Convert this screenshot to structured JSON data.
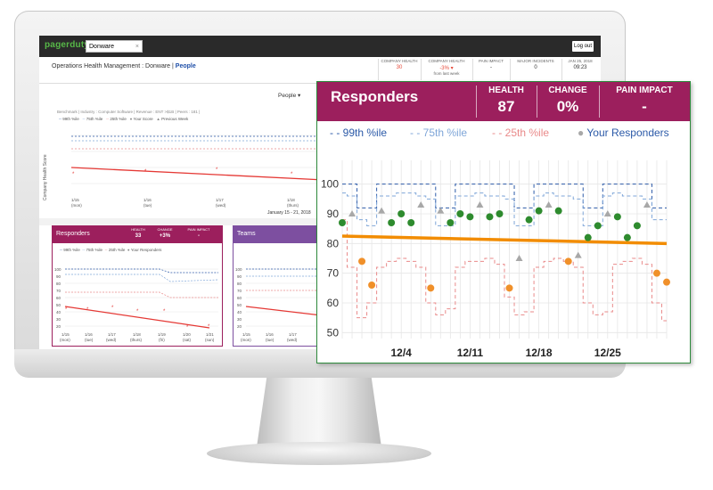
{
  "app": {
    "logo": "pagerduty",
    "org_value": "Donware",
    "logout": "Log out"
  },
  "page": {
    "title_prefix": "Operations Health Management : Donware |",
    "title_active": "People"
  },
  "stats": [
    {
      "label": "COMPANY HEALTH",
      "value": "30",
      "color": "#e74c3c"
    },
    {
      "label": "COMPANY HEALTH",
      "value": "-3% ▾",
      "sub": "from last week",
      "color": "#e74c3c"
    },
    {
      "label": "PAIN IMPACT",
      "value": "-"
    },
    {
      "label": "MAJOR INCIDENTS",
      "value": "0"
    },
    {
      "label": "JAN 25, 2018",
      "value": "09:23"
    }
  ],
  "main": {
    "dropdown": "People ▾",
    "benchmark": "Benchmark | Industry : Computer Software | Revenue : ENT >$1B | Peers : 181 |",
    "legend": [
      "99th %ile",
      "75th %ile",
      "25th %ile",
      "Your Score",
      "Previous Week"
    ],
    "ylabel": "Company Health Score",
    "xticks": [
      "1/15\n(mon)",
      "1/16\n(tue)",
      "1/17\n(wed)",
      "1/18\n(thurs)"
    ],
    "date_range": "January 15 - 21, 2018"
  },
  "card_responders": {
    "title": "Responders",
    "health_label": "HEALTH",
    "health": "33",
    "change_label": "CHANGE",
    "change": "+3%",
    "pain_label": "PAIN IMPACT",
    "pain": "-",
    "legend": [
      "99th %ile",
      "75th %ile",
      "25th %ile",
      "Your Responders"
    ],
    "yticks": [
      "100",
      "90",
      "80",
      "70",
      "60",
      "50",
      "40",
      "30",
      "20"
    ],
    "xticks": [
      "1/15\n(mon)",
      "1/16\n(tue)",
      "1/17\n(wed)",
      "1/18\n(thurs)",
      "1/19\n(fri)",
      "1/20\n(sat)",
      "1/21\n(sun)"
    ]
  },
  "card_teams": {
    "title": "Teams",
    "health_label": "HE",
    "yticks": [
      "100",
      "90",
      "80",
      "70",
      "60",
      "50",
      "40",
      "30",
      "20"
    ],
    "xticks": [
      "1/15\n(mon)",
      "1/16\n(tue)",
      "1/17\n(wed)"
    ]
  },
  "popup": {
    "title": "Responders",
    "health_label": "HEALTH",
    "health": "87",
    "change_label": "CHANGE",
    "change": "0%",
    "pain_label": "PAIN IMPACT",
    "pain": "-",
    "legend": [
      "99th %ile",
      "75th %ile",
      "25th %ile",
      "Your Responders"
    ]
  },
  "colors": {
    "brand": "#9c1f5d",
    "teams": "#7d4fa0",
    "p99": "#2c5aa8",
    "p75": "#7fa6d8",
    "p25": "#e98a8a",
    "trend": "#f28c00",
    "green": "#2e8b2e",
    "orange": "#f0902a",
    "gray": "#a8a8a8"
  },
  "chart_data": {
    "type": "scatter",
    "title": "Responders",
    "x": [
      "11/28",
      "11/29",
      "11/30",
      "12/1",
      "12/2",
      "12/3",
      "12/4",
      "12/5",
      "12/6",
      "12/7",
      "12/8",
      "12/9",
      "12/10",
      "12/11",
      "12/12",
      "12/13",
      "12/14",
      "12/15",
      "12/16",
      "12/17",
      "12/18",
      "12/19",
      "12/20",
      "12/21",
      "12/22",
      "12/23",
      "12/24",
      "12/25",
      "12/26",
      "12/27",
      "12/28",
      "12/29",
      "12/30",
      "12/31"
    ],
    "xticks": [
      "12/4",
      "12/11",
      "12/18",
      "12/25"
    ],
    "yticks": [
      50,
      60,
      70,
      80,
      90,
      100
    ],
    "ylim": [
      48,
      108
    ],
    "series": [
      {
        "name": "99th %ile",
        "style": "dashed",
        "color": "#2c5aa8",
        "values": [
          100,
          100,
          92,
          92,
          100,
          100,
          100,
          100,
          100,
          100,
          92,
          92,
          100,
          100,
          100,
          100,
          100,
          100,
          92,
          92,
          100,
          100,
          100,
          100,
          100,
          92,
          92,
          100,
          100,
          100,
          100,
          100,
          92,
          92
        ]
      },
      {
        "name": "75th %ile",
        "style": "dashed",
        "color": "#7fa6d8",
        "values": [
          97,
          96,
          88,
          86,
          96,
          96,
          97,
          97,
          96,
          95,
          86,
          86,
          96,
          96,
          97,
          96,
          96,
          95,
          86,
          86,
          96,
          97,
          96,
          96,
          95,
          86,
          86,
          96,
          97,
          96,
          96,
          95,
          88,
          88
        ]
      },
      {
        "name": "25th %ile",
        "style": "dashed",
        "color": "#e98a8a",
        "values": [
          88,
          72,
          55,
          60,
          72,
          74,
          75,
          74,
          72,
          60,
          56,
          58,
          72,
          74,
          74,
          75,
          73,
          62,
          56,
          57,
          72,
          74,
          75,
          74,
          72,
          60,
          56,
          57,
          73,
          74,
          75,
          73,
          60,
          54
        ]
      },
      {
        "name": "Your Responders",
        "color": "#a8a8a8",
        "points": [
          {
            "x": "11/28",
            "y": 87,
            "c": "green"
          },
          {
            "x": "11/29",
            "y": 90,
            "c": "gray"
          },
          {
            "x": "11/30",
            "y": 74,
            "c": "orange"
          },
          {
            "x": "12/1",
            "y": 66,
            "c": "orange"
          },
          {
            "x": "12/2",
            "y": 91,
            "c": "gray"
          },
          {
            "x": "12/3",
            "y": 87,
            "c": "green"
          },
          {
            "x": "12/4",
            "y": 90,
            "c": "green"
          },
          {
            "x": "12/5",
            "y": 87,
            "c": "green"
          },
          {
            "x": "12/6",
            "y": 93,
            "c": "gray"
          },
          {
            "x": "12/7",
            "y": 65,
            "c": "orange"
          },
          {
            "x": "12/8",
            "y": 91,
            "c": "gray"
          },
          {
            "x": "12/9",
            "y": 87,
            "c": "green"
          },
          {
            "x": "12/10",
            "y": 90,
            "c": "green"
          },
          {
            "x": "12/11",
            "y": 89,
            "c": "green"
          },
          {
            "x": "12/12",
            "y": 93,
            "c": "gray"
          },
          {
            "x": "12/13",
            "y": 89,
            "c": "green"
          },
          {
            "x": "12/14",
            "y": 90,
            "c": "green"
          },
          {
            "x": "12/15",
            "y": 65,
            "c": "orange"
          },
          {
            "x": "12/16",
            "y": 75,
            "c": "gray"
          },
          {
            "x": "12/17",
            "y": 88,
            "c": "green"
          },
          {
            "x": "12/18",
            "y": 91,
            "c": "green"
          },
          {
            "x": "12/19",
            "y": 93,
            "c": "gray"
          },
          {
            "x": "12/20",
            "y": 91,
            "c": "green"
          },
          {
            "x": "12/21",
            "y": 74,
            "c": "orange"
          },
          {
            "x": "12/22",
            "y": 76,
            "c": "gray"
          },
          {
            "x": "12/23",
            "y": 82,
            "c": "green"
          },
          {
            "x": "12/24",
            "y": 86,
            "c": "green"
          },
          {
            "x": "12/25",
            "y": 90,
            "c": "gray"
          },
          {
            "x": "12/26",
            "y": 89,
            "c": "green"
          },
          {
            "x": "12/27",
            "y": 82,
            "c": "green"
          },
          {
            "x": "12/28",
            "y": 86,
            "c": "green"
          },
          {
            "x": "12/29",
            "y": 93,
            "c": "gray"
          },
          {
            "x": "12/30",
            "y": 70,
            "c": "orange"
          },
          {
            "x": "12/31",
            "y": 67,
            "c": "orange"
          }
        ]
      },
      {
        "name": "trend",
        "style": "solid",
        "color": "#f28c00",
        "values_endpoints": [
          82.5,
          80
        ]
      }
    ],
    "grid": true
  }
}
